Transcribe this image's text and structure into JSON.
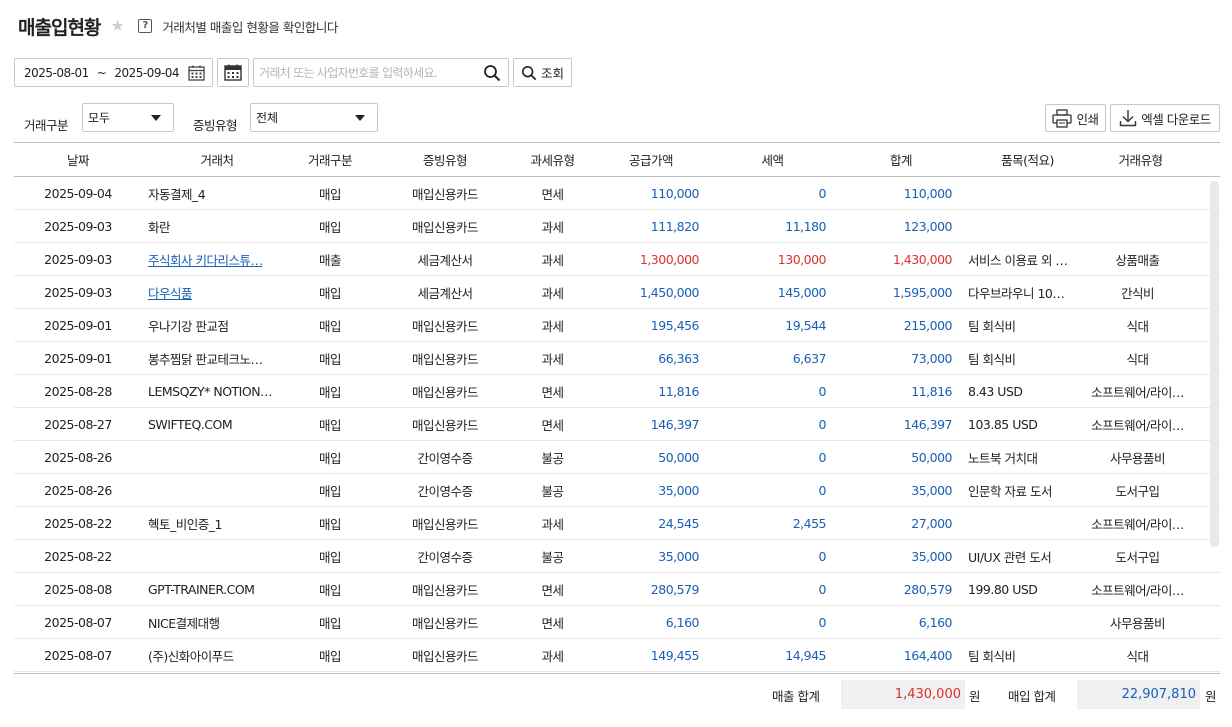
{
  "header": {
    "title": "매출입현황",
    "help_glyph": "?",
    "description": "거래처별 매출입 현황을 확인합니다"
  },
  "search": {
    "date_from": "2025-08-01",
    "date_sep": "~",
    "date_to": "2025-09-04",
    "placeholder": "거래처 또는 사업자번호를 입력하세요.",
    "query_label": "조회"
  },
  "filters": {
    "trade_label": "거래구분",
    "trade_value": "모두",
    "evidence_label": "증빙유형",
    "evidence_value": "전체"
  },
  "toolbar": {
    "print_label": "인쇄",
    "excel_label": "엑셀 다운로드"
  },
  "columns": [
    "날짜",
    "거래처",
    "거래구분",
    "증빙유형",
    "과세유형",
    "공급가액",
    "세액",
    "합계",
    "품목(적요)",
    "거래유형"
  ],
  "rows": [
    {
      "date": "2025-09-04",
      "party": "자동결제_4",
      "type": "매입",
      "evidence": "매입신용카드",
      "tax": "면세",
      "amount": "110,000",
      "vat": "0",
      "total": "110,000",
      "item": "",
      "kind": "",
      "link": false,
      "sale": false
    },
    {
      "date": "2025-09-03",
      "party": "화란",
      "type": "매입",
      "evidence": "매입신용카드",
      "tax": "과세",
      "amount": "111,820",
      "vat": "11,180",
      "total": "123,000",
      "item": "",
      "kind": "",
      "link": false,
      "sale": false
    },
    {
      "date": "2025-09-03",
      "party": "주식회사 키다리스튜…",
      "type": "매출",
      "evidence": "세금계산서",
      "tax": "과세",
      "amount": "1,300,000",
      "vat": "130,000",
      "total": "1,430,000",
      "item": "서비스 이용료 외 …",
      "kind": "상품매출",
      "link": true,
      "sale": true
    },
    {
      "date": "2025-09-03",
      "party": "다우식품",
      "type": "매입",
      "evidence": "세금계산서",
      "tax": "과세",
      "amount": "1,450,000",
      "vat": "145,000",
      "total": "1,595,000",
      "item": "다우브라우니 10…",
      "kind": "간식비",
      "link": true,
      "sale": false
    },
    {
      "date": "2025-09-01",
      "party": "우나기강 판교점",
      "type": "매입",
      "evidence": "매입신용카드",
      "tax": "과세",
      "amount": "195,456",
      "vat": "19,544",
      "total": "215,000",
      "item": "팀 회식비",
      "kind": "식대",
      "link": false,
      "sale": false
    },
    {
      "date": "2025-09-01",
      "party": "봉추찜닭 판교테크노…",
      "type": "매입",
      "evidence": "매입신용카드",
      "tax": "과세",
      "amount": "66,363",
      "vat": "6,637",
      "total": "73,000",
      "item": "팀 회식비",
      "kind": "식대",
      "link": false,
      "sale": false
    },
    {
      "date": "2025-08-28",
      "party": "LEMSQZY* NOTION…",
      "type": "매입",
      "evidence": "매입신용카드",
      "tax": "면세",
      "amount": "11,816",
      "vat": "0",
      "total": "11,816",
      "item": "8.43 USD",
      "kind": "소프트웨어/라이…",
      "link": false,
      "sale": false
    },
    {
      "date": "2025-08-27",
      "party": "SWIFTEQ.COM",
      "type": "매입",
      "evidence": "매입신용카드",
      "tax": "면세",
      "amount": "146,397",
      "vat": "0",
      "total": "146,397",
      "item": "103.85 USD",
      "kind": "소프트웨어/라이…",
      "link": false,
      "sale": false
    },
    {
      "date": "2025-08-26",
      "party": "",
      "type": "매입",
      "evidence": "간이영수증",
      "tax": "불공",
      "amount": "50,000",
      "vat": "0",
      "total": "50,000",
      "item": "노트북 거치대",
      "kind": "사무용품비",
      "link": false,
      "sale": false
    },
    {
      "date": "2025-08-26",
      "party": "",
      "type": "매입",
      "evidence": "간이영수증",
      "tax": "불공",
      "amount": "35,000",
      "vat": "0",
      "total": "35,000",
      "item": "인문학 자료 도서",
      "kind": "도서구입",
      "link": false,
      "sale": false
    },
    {
      "date": "2025-08-22",
      "party": "혝토_비인증_1",
      "type": "매입",
      "evidence": "매입신용카드",
      "tax": "과세",
      "amount": "24,545",
      "vat": "2,455",
      "total": "27,000",
      "item": "",
      "kind": "소프트웨어/라이…",
      "link": false,
      "sale": false
    },
    {
      "date": "2025-08-22",
      "party": "",
      "type": "매입",
      "evidence": "간이영수증",
      "tax": "불공",
      "amount": "35,000",
      "vat": "0",
      "total": "35,000",
      "item": "UI/UX 관련 도서",
      "kind": "도서구입",
      "link": false,
      "sale": false
    },
    {
      "date": "2025-08-08",
      "party": "GPT-TRAINER.COM",
      "type": "매입",
      "evidence": "매입신용카드",
      "tax": "면세",
      "amount": "280,579",
      "vat": "0",
      "total": "280,579",
      "item": "199.80 USD",
      "kind": "소프트웨어/라이…",
      "link": false,
      "sale": false
    },
    {
      "date": "2025-08-07",
      "party": "NICE결제대행",
      "type": "매입",
      "evidence": "매입신용카드",
      "tax": "면세",
      "amount": "6,160",
      "vat": "0",
      "total": "6,160",
      "item": "",
      "kind": "사무용품비",
      "link": false,
      "sale": false
    },
    {
      "date": "2025-08-07",
      "party": "(주)신화아이푸드",
      "type": "매입",
      "evidence": "매입신용카드",
      "tax": "과세",
      "amount": "149,455",
      "vat": "14,945",
      "total": "164,400",
      "item": "팀 회식비",
      "kind": "식대",
      "link": false,
      "sale": false
    }
  ],
  "totals": {
    "sales_label": "매출 합계",
    "sales_value": "1,430,000",
    "purchase_label": "매입 합계",
    "purchase_value": "22,907,810",
    "currency": "원"
  },
  "colors": {
    "purchase": "#1a5fb4",
    "sale": "#e0312b",
    "total_bg": "#eef0f2"
  }
}
